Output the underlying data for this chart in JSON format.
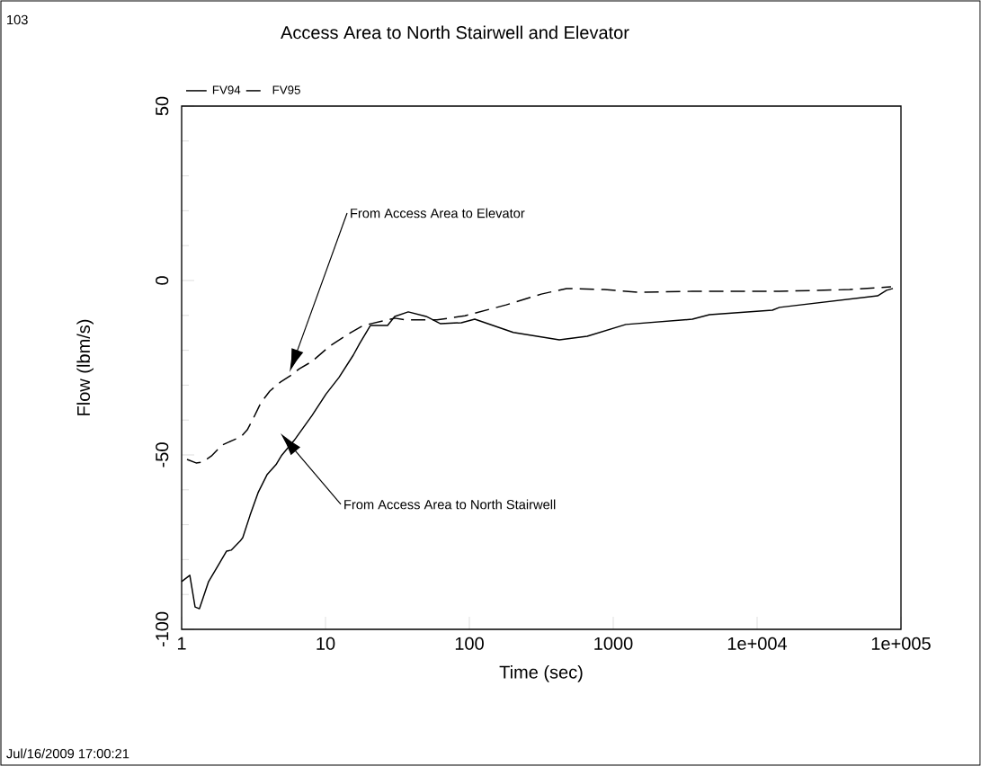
{
  "chart_data": {
    "type": "line",
    "title": "Access Area to North Stairwell and Elevator",
    "xlabel": "Time (sec)",
    "ylabel": "Flow (lbm/s)",
    "log": "x",
    "xlim": [
      1,
      100000
    ],
    "ylim": [
      -100,
      50
    ],
    "xticks": [
      1,
      10,
      100,
      1000,
      {
        "value": 10000,
        "label": "1e+004"
      },
      {
        "value": 100000,
        "label": "1e+005"
      }
    ],
    "yticks": [
      -100,
      -50,
      0,
      50
    ],
    "legend": "top left",
    "grid": false,
    "series": [
      {
        "name": "FV94",
        "color": "#000000",
        "line_style": "solid",
        "x": [
          1,
          1.14,
          1.24,
          1.33,
          1.54,
          1.78,
          2.05,
          2.21,
          2.55,
          2.66,
          2.99,
          3.4,
          3.92,
          4.53,
          4.94,
          6.04,
          8.06,
          10.1,
          12.4,
          15.6,
          17.3,
          20.5,
          27,
          30.3,
          37.6,
          50.1,
          63.1,
          87.9,
          109,
          202,
          422,
          659,
          1223,
          3548,
          4667,
          12770,
          14320,
          68800,
          79400,
          87900
        ],
        "values": [
          -86.3,
          -84.5,
          -93.6,
          -94.1,
          -86.3,
          -81.9,
          -77.6,
          -77.3,
          -74.7,
          -73.7,
          -67.3,
          -60.8,
          -55.7,
          -52.8,
          -50.2,
          -45.9,
          -38.7,
          -32.5,
          -27.8,
          -21.4,
          -18.0,
          -12.9,
          -12.9,
          -10.3,
          -9.0,
          -10.3,
          -12.4,
          -12.1,
          -11.1,
          -14.9,
          -17.0,
          -16.0,
          -12.6,
          -11.1,
          -9.8,
          -8.5,
          -7.7,
          -4.4,
          -2.8,
          -2.3
        ]
      },
      {
        "name": "FV95",
        "color": "#000000",
        "line_style": "dashed",
        "x": [
          1.09,
          1.26,
          1.39,
          1.61,
          1.91,
          2.24,
          2.59,
          2.86,
          3.16,
          3.55,
          4.1,
          4.87,
          5.7,
          6.59,
          8.06,
          10.7,
          15,
          18.3,
          30.3,
          36,
          59.6,
          93.1,
          180,
          316,
          473,
          866,
          1518,
          3548,
          14320,
          44000,
          85300
        ],
        "values": [
          -51.3,
          -52.3,
          -52.1,
          -50.3,
          -47.2,
          -45.9,
          -44.8,
          -42.8,
          -39.4,
          -35.1,
          -31.7,
          -29.1,
          -27.3,
          -25.3,
          -23.2,
          -18.8,
          -14.9,
          -12.9,
          -10.8,
          -11.3,
          -11.3,
          -10.1,
          -7.0,
          -3.9,
          -2.3,
          -2.6,
          -3.4,
          -3.1,
          -3.1,
          -2.6,
          -1.8
        ]
      }
    ],
    "annotations": [
      "From Access Area to Elevator",
      "From Access Area to North Stairwell",
      "103",
      "Jul/16/2009 17:00:21"
    ]
  }
}
